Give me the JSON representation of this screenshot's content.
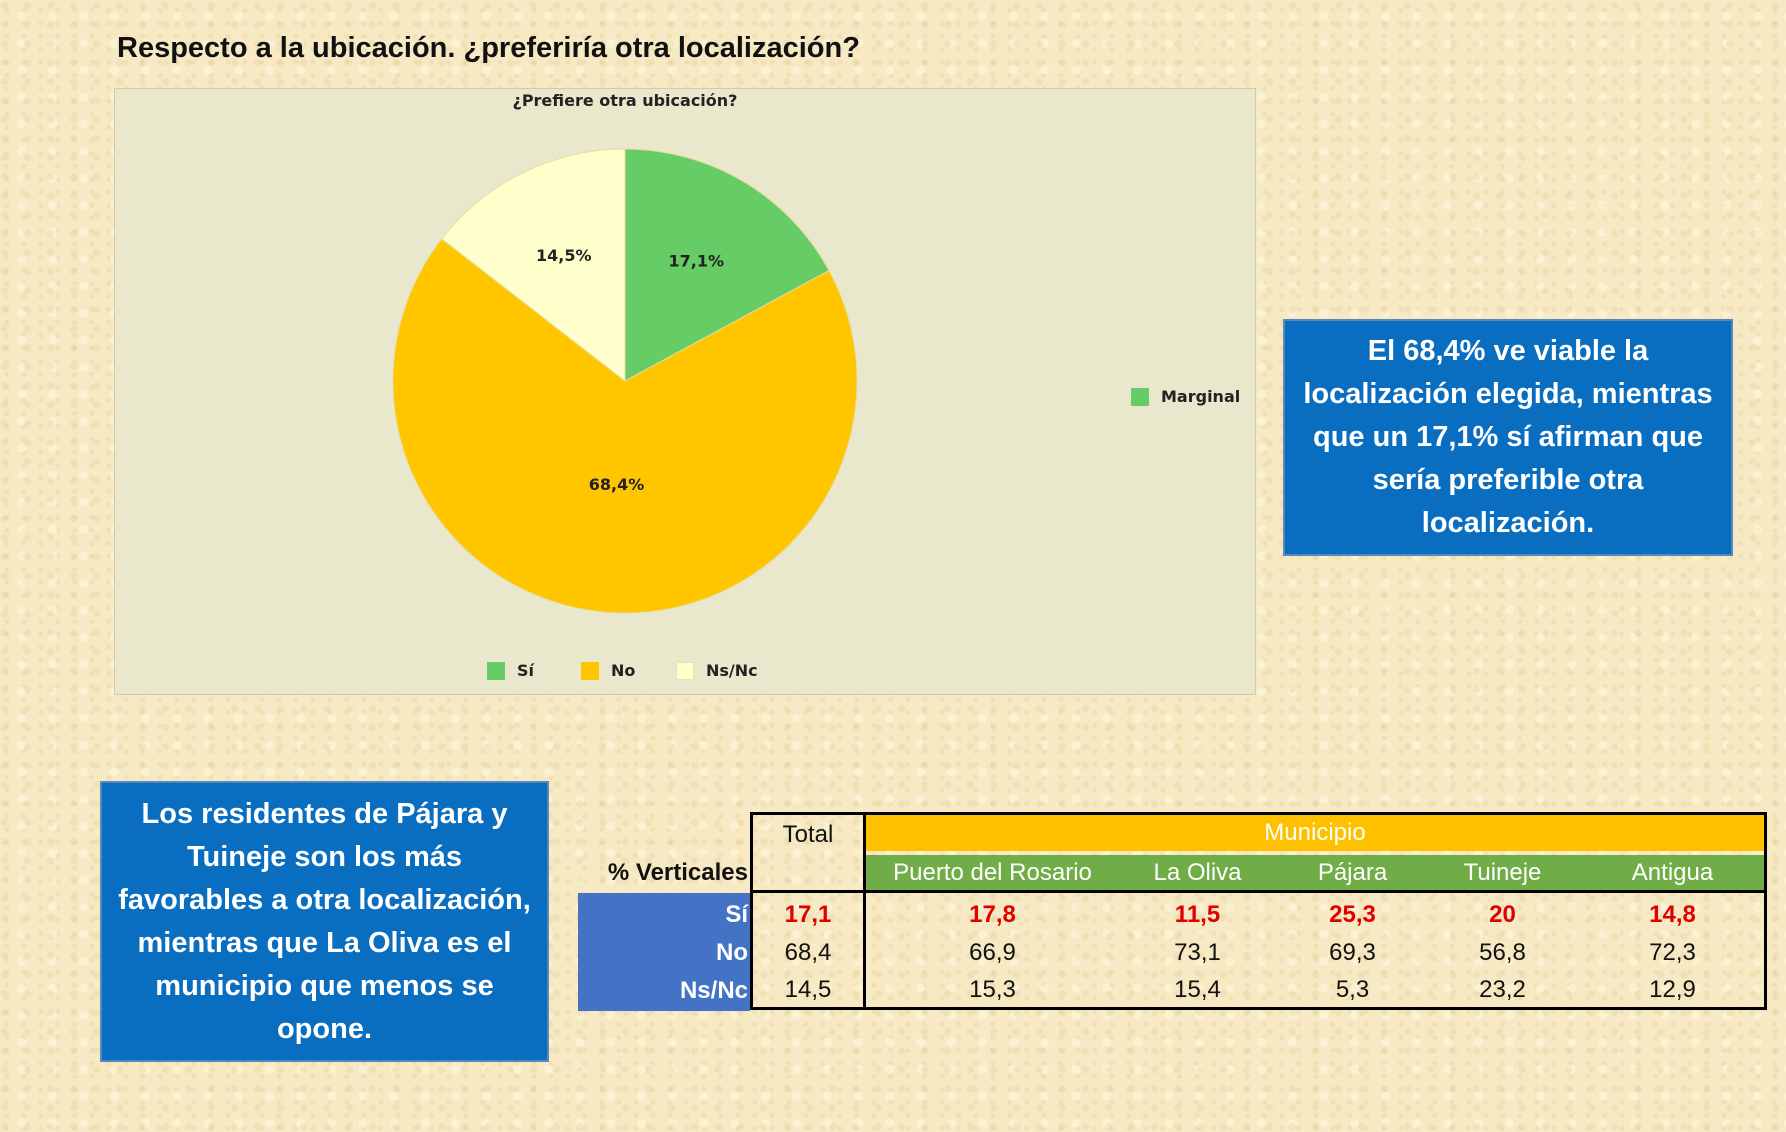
{
  "heading": "Respecto a la ubicación. ¿preferiría otra localización?",
  "chart_data": {
    "type": "pie",
    "title": "¿Prefiere otra ubicación?",
    "categories": [
      "Sí",
      "No",
      "Ns/Nc"
    ],
    "values": [
      17.1,
      68.4,
      14.5
    ],
    "labels": [
      "17,1%",
      "68,4%",
      "14,5%"
    ],
    "colors": [
      "#66cc66",
      "#ffc600",
      "#ffffcc"
    ],
    "legend": [
      "Sí",
      "No",
      "Ns/Nc"
    ],
    "legend_placement": "bottom",
    "side_legend": "Marginal",
    "side_legend_color": "#66cc66"
  },
  "info_right": "El 68,4% ve viable la localización elegida, mientras que un 17,1% sí afirman que sería preferible otra localización.",
  "info_left": "Los residentes de Pájara y Tuineje son los más favorables a otra localización, mientras que La Oliva es el municipio que menos se opone.",
  "table": {
    "row_header_label": "% Verticales",
    "total_header": "Total",
    "group_header": "Municipio",
    "columns": [
      "Puerto del Rosario",
      "La Oliva",
      "Pájara",
      "Tuineje",
      "Antigua"
    ],
    "rows": [
      {
        "label": "Sí",
        "total": "17,1",
        "values": [
          "17,8",
          "11,5",
          "25,3",
          "20",
          "14,8"
        ]
      },
      {
        "label": "No",
        "total": "68,4",
        "values": [
          "66,9",
          "73,1",
          "69,3",
          "56,8",
          "72,3"
        ]
      },
      {
        "label": "Ns/Nc",
        "total": "14,5",
        "values": [
          "15,3",
          "15,4",
          "5,3",
          "23,2",
          "12,9"
        ]
      }
    ],
    "colors": {
      "group_header_bg": "#ffc000",
      "col_header_bg": "#70ad47",
      "row_label_bg": "#4472c4",
      "highlight_text": "#e00000"
    }
  }
}
